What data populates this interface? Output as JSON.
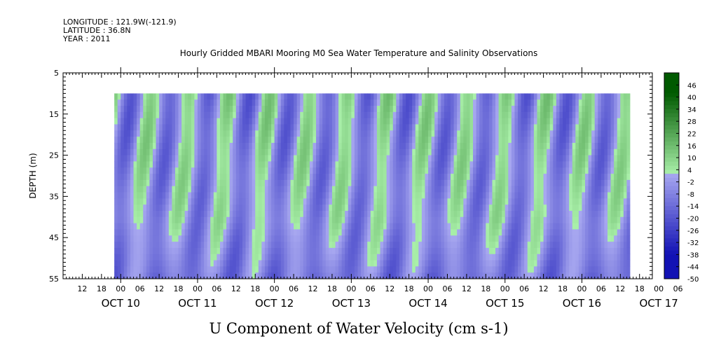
{
  "header": {
    "longitude": "LONGITUDE : 121.9W(-121.9)",
    "latitude": "LATITUDE : 36.8N",
    "year": "YEAR : 2011"
  },
  "chart_data": {
    "type": "heatmap",
    "title": "Hourly Gridded MBARI Mooring M0 Sea Water Temperature and Salinity Observations",
    "bottom_title": "U Component of Water Velocity (cm s-1)",
    "ylabel": "DEPTH (m)",
    "y_ticks": [
      "5",
      "15",
      "25",
      "35",
      "45",
      "55"
    ],
    "ylim": [
      55,
      5
    ],
    "depth_range": [
      10,
      55
    ],
    "x_hour_labels": [
      "12",
      "18",
      "00",
      "06",
      "12",
      "18",
      "00",
      "06",
      "12",
      "18",
      "00",
      "06",
      "12",
      "18",
      "00",
      "06",
      "12",
      "18",
      "00",
      "06",
      "12",
      "18",
      "00",
      "06",
      "12",
      "18",
      "00",
      "06",
      "12",
      "18",
      "00",
      "06"
    ],
    "x_date_labels": [
      "OCT 10",
      "OCT 11",
      "OCT 12",
      "OCT 13",
      "OCT 14",
      "OCT 15",
      "OCT 16",
      "OCT 17"
    ],
    "time_range_hours": [
      16,
      177
    ],
    "colorbar": {
      "labels": [
        "46",
        "40",
        "34",
        "28",
        "22",
        "16",
        "10",
        "4",
        "-2",
        "-8",
        "-14",
        "-20",
        "-26",
        "-32",
        "-38",
        "-44",
        "-50"
      ],
      "range": [
        -50,
        52
      ],
      "low_color": "#000066",
      "mid_color": "#a8a8f0",
      "zero_color": "#b0f0b0",
      "high_color": "#003300"
    },
    "legend_position": "right",
    "grid": false
  }
}
